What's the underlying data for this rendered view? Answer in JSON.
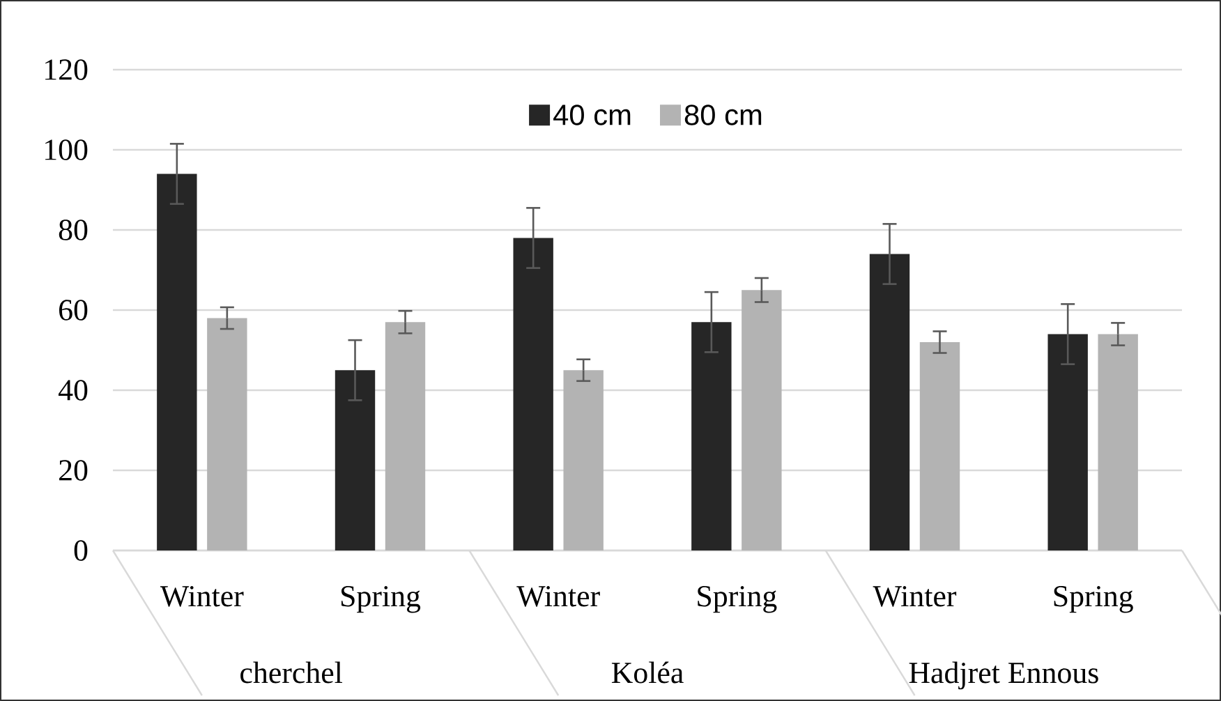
{
  "chart_data": {
    "type": "bar",
    "categories": [
      "Winter",
      "Spring",
      "Winter",
      "Spring",
      "Winter",
      "Spring"
    ],
    "series": [
      {
        "name": "40 cm",
        "color": "#262626",
        "values": [
          94,
          45,
          78,
          57,
          74,
          54
        ],
        "errors": [
          7.5,
          7.5,
          7.5,
          7.5,
          7.5,
          7.5
        ]
      },
      {
        "name": "80 cm",
        "color": "#b3b3b3",
        "values": [
          58,
          57,
          45,
          65,
          52,
          54
        ],
        "errors": [
          2.7,
          2.8,
          2.7,
          3,
          2.7,
          2.8
        ]
      }
    ],
    "ylim": [
      0,
      120
    ],
    "yticks": [
      0,
      20,
      40,
      60,
      80,
      100,
      120
    ],
    "grid": "y",
    "legend": "top",
    "annotations": [
      "cherchel",
      "Koléa",
      "Hadjret Ennous"
    ]
  }
}
